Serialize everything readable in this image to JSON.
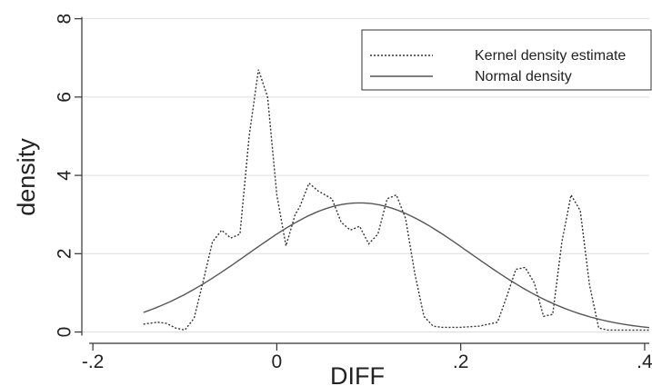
{
  "chart_data": {
    "type": "line",
    "title": "",
    "xlabel": "DIFF",
    "ylabel": "density",
    "xlim": [
      -0.21,
      0.405
    ],
    "ylim": [
      -0.15,
      8.2
    ],
    "x_ticks": [
      -0.2,
      0,
      0.2,
      0.4
    ],
    "x_tick_labels": [
      "-.2",
      "0",
      ".2",
      ".4"
    ],
    "y_ticks": [
      0,
      2,
      4,
      6,
      8
    ],
    "y_tick_labels": [
      "0",
      "2",
      "4",
      "6",
      "8"
    ],
    "grid": true,
    "legend_position": "top-right",
    "series": [
      {
        "name": "Kernel density estimate",
        "style": "dotted",
        "color": "#333333",
        "x": [
          -0.145,
          -0.13,
          -0.12,
          -0.11,
          -0.1,
          -0.09,
          -0.08,
          -0.07,
          -0.06,
          -0.05,
          -0.04,
          -0.03,
          -0.02,
          -0.01,
          0.0,
          0.01,
          0.02,
          0.025,
          0.035,
          0.045,
          0.06,
          0.07,
          0.08,
          0.09,
          0.1,
          0.11,
          0.12,
          0.13,
          0.14,
          0.15,
          0.16,
          0.17,
          0.18,
          0.2,
          0.22,
          0.24,
          0.25,
          0.26,
          0.27,
          0.28,
          0.29,
          0.3,
          0.31,
          0.32,
          0.33,
          0.34,
          0.35,
          0.36,
          0.38,
          0.405
        ],
        "y": [
          0.2,
          0.25,
          0.22,
          0.1,
          0.05,
          0.35,
          1.3,
          2.3,
          2.6,
          2.4,
          2.5,
          5.0,
          6.7,
          6.0,
          3.5,
          2.2,
          3.0,
          3.2,
          3.8,
          3.6,
          3.4,
          2.8,
          2.6,
          2.7,
          2.25,
          2.5,
          3.4,
          3.5,
          2.9,
          1.5,
          0.4,
          0.15,
          0.12,
          0.12,
          0.15,
          0.25,
          0.9,
          1.6,
          1.65,
          1.25,
          0.4,
          0.45,
          2.3,
          3.5,
          3.1,
          1.2,
          0.1,
          0.05,
          0.05,
          0.05
        ]
      },
      {
        "name": "Normal density",
        "style": "solid",
        "color": "#555555",
        "mean": 0.09,
        "sd": 0.121,
        "x_start": -0.145,
        "x_end": 0.405
      }
    ]
  }
}
